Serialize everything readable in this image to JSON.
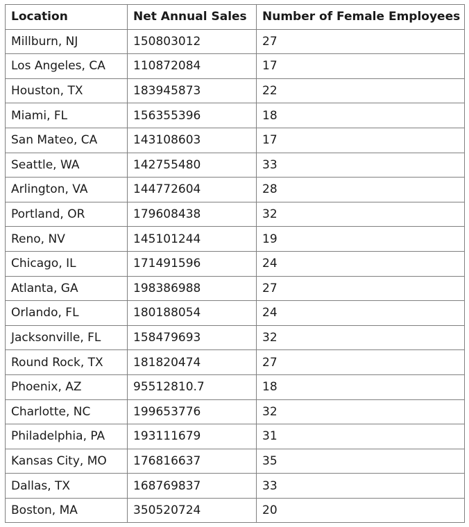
{
  "table": {
    "headers": [
      "Location",
      "Net Annual Sales",
      "Number of Female Employees"
    ],
    "rows": [
      [
        "Millburn, NJ",
        "150803012",
        "27"
      ],
      [
        "Los Angeles, CA",
        "110872084",
        "17"
      ],
      [
        "Houston, TX",
        "183945873",
        "22"
      ],
      [
        "Miami, FL",
        "156355396",
        "18"
      ],
      [
        "San Mateo, CA",
        "143108603",
        "17"
      ],
      [
        "Seattle, WA",
        "142755480",
        "33"
      ],
      [
        "Arlington, VA",
        "144772604",
        "28"
      ],
      [
        "Portland, OR",
        "179608438",
        "32"
      ],
      [
        "Reno, NV",
        "145101244",
        "19"
      ],
      [
        "Chicago, IL",
        "171491596",
        "24"
      ],
      [
        "Atlanta, GA",
        "198386988",
        "27"
      ],
      [
        "Orlando, FL",
        "180188054",
        "24"
      ],
      [
        "Jacksonville, FL",
        "158479693",
        "32"
      ],
      [
        "Round Rock, TX",
        "181820474",
        "27"
      ],
      [
        "Phoenix, AZ",
        "95512810.7",
        "18"
      ],
      [
        "Charlotte, NC",
        "199653776",
        "32"
      ],
      [
        "Philadelphia, PA",
        "193111679",
        "31"
      ],
      [
        "Kansas City, MO",
        "176816637",
        "35"
      ],
      [
        "Dallas, TX",
        "168769837",
        "33"
      ],
      [
        "Boston, MA",
        "350520724",
        "20"
      ]
    ]
  }
}
